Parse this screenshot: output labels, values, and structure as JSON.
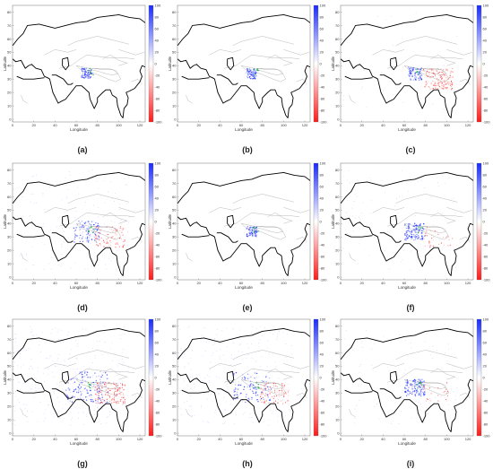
{
  "axes": {
    "xlabel": "Longitude",
    "ylabel": "Latitude",
    "x_ticks": [
      "0",
      "20",
      "40",
      "60",
      "80",
      "100",
      "120"
    ],
    "y_ticks": [
      "0",
      "10",
      "20",
      "30",
      "40",
      "50",
      "60",
      "70",
      "80"
    ]
  },
  "colorbar": {
    "ticks": [
      "100",
      "80",
      "60",
      "40",
      "20",
      "0",
      "-20",
      "-40",
      "-60",
      "-80",
      "-100"
    ],
    "colors": {
      "positive": "#1a2bff",
      "neutral": "#ffffff",
      "negative": "#ff1a1a"
    }
  },
  "panels": [
    {
      "caption": "(a)",
      "blue": 0.35,
      "red": 0.0,
      "spread": 0.0
    },
    {
      "caption": "(b)",
      "blue": 0.35,
      "red": 0.0,
      "spread": 0.0
    },
    {
      "caption": "(c)",
      "blue": 0.35,
      "red": 0.9,
      "spread": 0.1
    },
    {
      "caption": "(d)",
      "blue": 0.6,
      "red": 0.5,
      "spread": 0.5
    },
    {
      "caption": "(e)",
      "blue": 0.4,
      "red": 0.0,
      "spread": 0.0
    },
    {
      "caption": "(f)",
      "blue": 0.9,
      "red": 0.2,
      "spread": 0.3
    },
    {
      "caption": "(g)",
      "blue": 1.0,
      "red": 0.8,
      "spread": 1.0
    },
    {
      "caption": "(h)",
      "blue": 0.7,
      "red": 0.5,
      "spread": 0.9
    },
    {
      "caption": "(i)",
      "blue": 0.9,
      "red": 0.15,
      "spread": 0.3
    }
  ]
}
